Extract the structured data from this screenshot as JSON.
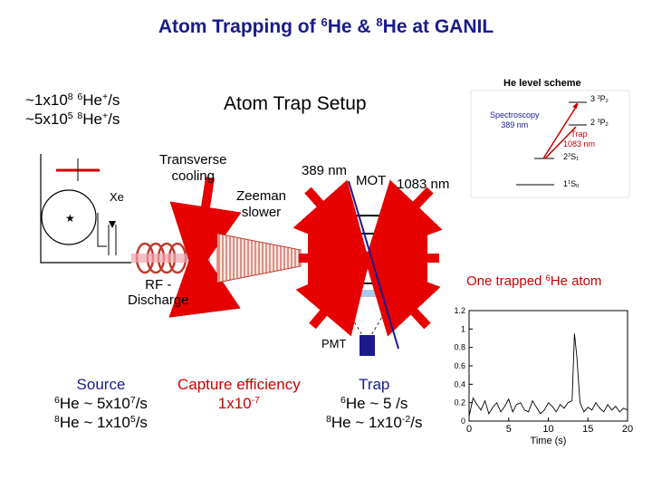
{
  "title": {
    "prefix": "Atom Trapping of ",
    "sup1": "6",
    "mid": "He & ",
    "sup2": "8",
    "suffix": "He at GANIL"
  },
  "flux": {
    "line1_base": "~1x10",
    "line1_exp": "8",
    "line1_iso": "6",
    "line1_ion": "He",
    "line1_plus": "+",
    "line1_unit": "/s",
    "line2_base": "~5x10",
    "line2_exp": "5",
    "line2_iso": "8",
    "line2_ion": "He",
    "line2_plus": "+",
    "line2_unit": "/s"
  },
  "setup_title": "Atom Trap Setup",
  "labels": {
    "transverse_cooling_1": "Transverse",
    "transverse_cooling_2": "cooling",
    "xe": "Xe",
    "zeeman_1": "Zeeman",
    "zeeman_2": "slower",
    "wavelength_389": "389 nm",
    "mot": "MOT",
    "wavelength_1083": "1083 nm",
    "rf_1": "RF -",
    "rf_2": "Discharge",
    "pmt": "PMT",
    "one_trapped_prefix": "One trapped ",
    "one_trapped_iso": "6",
    "one_trapped_suffix": "He atom"
  },
  "level_scheme": {
    "title": "He level scheme",
    "state_3p2_num": "3 ",
    "state_3p2_mult": "3",
    "state_3p2_letter": "P",
    "state_3p2_j": "2",
    "state_2p2_num": "2 ",
    "state_2p2_mult": "3",
    "state_2p2_letter": "P",
    "state_2p2_j": "2",
    "state_2s1_num": "2",
    "state_2s1_mult": "3",
    "state_2s1_letter": "S",
    "state_2s1_j": "1",
    "state_1s0_num": "1",
    "state_1s0_mult": "1",
    "state_1s0_letter": "S",
    "state_1s0_j": "0",
    "spectroscopy": "Spectroscopy",
    "spectroscopy_nm": "389 nm",
    "trap": "Trap",
    "trap_nm": "1083 nm"
  },
  "source": {
    "title": "Source",
    "line1_iso": "6",
    "line1_text": "He ~ 5x10",
    "line1_exp": "7",
    "line1_unit": "/s",
    "line2_iso": "8",
    "line2_text": "He ~ 1x10",
    "line2_exp": "5",
    "line2_unit": "/s"
  },
  "capture": {
    "title": "Capture efficiency",
    "value_base": "1x10",
    "value_exp": "-7"
  },
  "trap": {
    "title": "Trap",
    "line1_iso": "6",
    "line1_text": "He ~ 5 /s",
    "line2_iso": "8",
    "line2_text": "He ~ 1x10",
    "line2_exp": "-2",
    "line2_unit": "/s"
  },
  "chart_data": {
    "type": "line",
    "xlabel": "Time (s)",
    "ylabel": "",
    "xlim": [
      0,
      20
    ],
    "ylim": [
      0,
      1.2
    ],
    "x_ticks": [
      "0",
      "5",
      "10",
      "15",
      "20"
    ],
    "y_ticks": [
      "0",
      "0.2",
      "0.4",
      "0.6",
      "0.8",
      "1",
      "1.2"
    ],
    "series": [
      {
        "x": [
          0,
          0.5,
          1,
          1.5,
          2,
          2.5,
          3,
          3.5,
          4,
          4.5,
          5,
          5.5,
          6,
          6.5,
          7,
          7.5,
          8,
          8.5,
          9,
          9.5,
          10,
          10.5,
          11,
          11.5,
          12,
          12.5,
          13,
          13.3,
          13.6,
          14,
          14.5,
          15,
          15.5,
          16,
          16.5,
          17,
          17.5,
          18,
          18.5,
          19,
          19.5,
          20
        ],
        "y": [
          0.05,
          0.25,
          0.18,
          0.12,
          0.22,
          0.08,
          0.15,
          0.2,
          0.1,
          0.16,
          0.24,
          0.1,
          0.18,
          0.2,
          0.12,
          0.1,
          0.22,
          0.15,
          0.08,
          0.12,
          0.2,
          0.16,
          0.1,
          0.18,
          0.14,
          0.2,
          0.22,
          0.95,
          0.7,
          0.2,
          0.1,
          0.15,
          0.12,
          0.2,
          0.14,
          0.1,
          0.18,
          0.12,
          0.16,
          0.1,
          0.14,
          0.12
        ]
      }
    ]
  }
}
